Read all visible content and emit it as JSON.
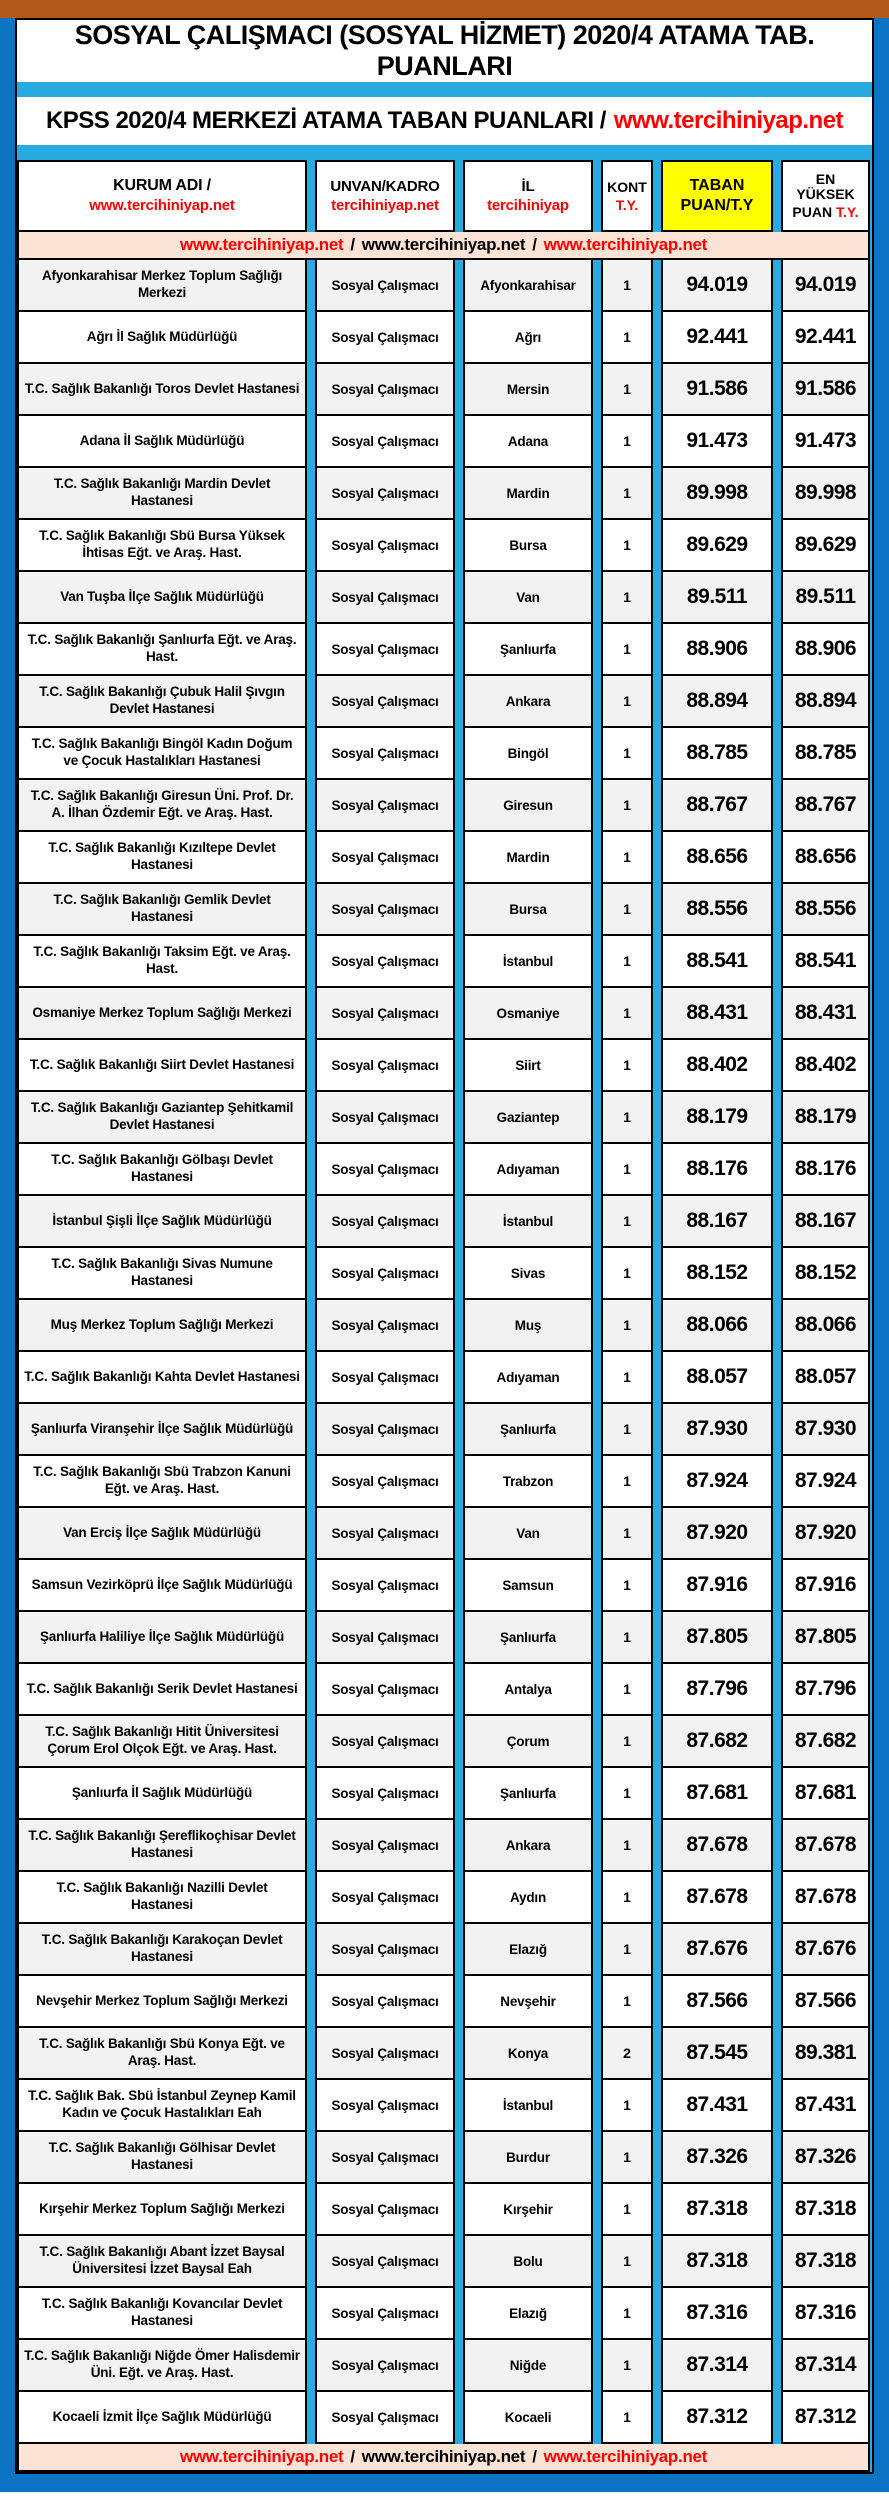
{
  "colors": {
    "outer_frame_blue": "#0D74C4",
    "divider_cyan": "#29ABE2",
    "top_bar_brown": "#B4591C",
    "taban_header_yellow": "#FFFF00",
    "url_bar_pink": "#FBE3D6",
    "link_red": "#FF0000",
    "odd_row_gray": "#F2F2F2"
  },
  "header": {
    "title": "SOSYAL ÇALIŞMACI (SOSYAL HİZMET) 2020/4 ATAMA TAB. PUANLARI",
    "subtitle": "KPSS 2020/4 MERKEZİ ATAMA TABAN PUANLARI /",
    "subtitle_link": "www.tercihiniyap.net"
  },
  "columns": [
    {
      "line1": "KURUM ADI /",
      "line2": "www.tercihiniyap.net"
    },
    {
      "line1": "UNVAN/KADRO",
      "line2": "tercihiniyap.net"
    },
    {
      "line1": "İL",
      "line2": "tercihiniyap"
    },
    {
      "line1": "KONT",
      "line2": "T.Y."
    },
    {
      "line1": "TABAN",
      "line2": "PUAN/T.Y"
    },
    {
      "line1": "EN YÜKSEK",
      "line2": "PUAN",
      "line2_red": "T.Y."
    }
  ],
  "url_bar": {
    "left": "www.tercihiniyap.net",
    "middle": "www.tercihiniyap.net",
    "right": "www.tercihiniyap.net",
    "separator": "/"
  },
  "rows": [
    {
      "kurum": "Afyonkarahisar Merkez Toplum Sağlığı Merkezi",
      "unvan": "Sosyal Çalışmacı",
      "il": "Afyonkarahisar",
      "kont": "1",
      "taban": "94.019",
      "max": "94.019"
    },
    {
      "kurum": "Ağrı İl Sağlık Müdürlüğü",
      "unvan": "Sosyal Çalışmacı",
      "il": "Ağrı",
      "kont": "1",
      "taban": "92.441",
      "max": "92.441"
    },
    {
      "kurum": "T.C. Sağlık Bakanlığı Toros Devlet Hastanesi",
      "unvan": "Sosyal Çalışmacı",
      "il": "Mersin",
      "kont": "1",
      "taban": "91.586",
      "max": "91.586"
    },
    {
      "kurum": "Adana İl Sağlık Müdürlüğü",
      "unvan": "Sosyal Çalışmacı",
      "il": "Adana",
      "kont": "1",
      "taban": "91.473",
      "max": "91.473"
    },
    {
      "kurum": "T.C. Sağlık Bakanlığı Mardin Devlet Hastanesi",
      "unvan": "Sosyal Çalışmacı",
      "il": "Mardin",
      "kont": "1",
      "taban": "89.998",
      "max": "89.998"
    },
    {
      "kurum": "T.C. Sağlık Bakanlığı Sbü Bursa Yüksek İhtisas Eğt. ve Araş. Hast.",
      "unvan": "Sosyal Çalışmacı",
      "il": "Bursa",
      "kont": "1",
      "taban": "89.629",
      "max": "89.629"
    },
    {
      "kurum": "Van Tuşba İlçe Sağlık Müdürlüğü",
      "unvan": "Sosyal Çalışmacı",
      "il": "Van",
      "kont": "1",
      "taban": "89.511",
      "max": "89.511"
    },
    {
      "kurum": "T.C. Sağlık Bakanlığı Şanlıurfa Eğt. ve Araş. Hast.",
      "unvan": "Sosyal Çalışmacı",
      "il": "Şanlıurfa",
      "kont": "1",
      "taban": "88.906",
      "max": "88.906"
    },
    {
      "kurum": "T.C. Sağlık Bakanlığı Çubuk Halil Şıvgın Devlet Hastanesi",
      "unvan": "Sosyal Çalışmacı",
      "il": "Ankara",
      "kont": "1",
      "taban": "88.894",
      "max": "88.894"
    },
    {
      "kurum": "T.C. Sağlık Bakanlığı Bingöl Kadın Doğum ve Çocuk Hastalıkları Hastanesi",
      "unvan": "Sosyal Çalışmacı",
      "il": "Bingöl",
      "kont": "1",
      "taban": "88.785",
      "max": "88.785"
    },
    {
      "kurum": "T.C. Sağlık Bakanlığı Giresun Üni. Prof. Dr. A. İlhan Özdemir Eğt. ve Araş. Hast.",
      "unvan": "Sosyal Çalışmacı",
      "il": "Giresun",
      "kont": "1",
      "taban": "88.767",
      "max": "88.767"
    },
    {
      "kurum": "T.C. Sağlık Bakanlığı Kızıltepe Devlet Hastanesi",
      "unvan": "Sosyal Çalışmacı",
      "il": "Mardin",
      "kont": "1",
      "taban": "88.656",
      "max": "88.656"
    },
    {
      "kurum": "T.C. Sağlık Bakanlığı Gemlik Devlet Hastanesi",
      "unvan": "Sosyal Çalışmacı",
      "il": "Bursa",
      "kont": "1",
      "taban": "88.556",
      "max": "88.556"
    },
    {
      "kurum": "T.C. Sağlık Bakanlığı Taksim Eğt. ve Araş. Hast.",
      "unvan": "Sosyal Çalışmacı",
      "il": "İstanbul",
      "kont": "1",
      "taban": "88.541",
      "max": "88.541"
    },
    {
      "kurum": "Osmaniye Merkez Toplum Sağlığı Merkezi",
      "unvan": "Sosyal Çalışmacı",
      "il": "Osmaniye",
      "kont": "1",
      "taban": "88.431",
      "max": "88.431"
    },
    {
      "kurum": "T.C. Sağlık Bakanlığı Siirt Devlet Hastanesi",
      "unvan": "Sosyal Çalışmacı",
      "il": "Siirt",
      "kont": "1",
      "taban": "88.402",
      "max": "88.402"
    },
    {
      "kurum": "T.C. Sağlık Bakanlığı Gaziantep Şehitkamil Devlet Hastanesi",
      "unvan": "Sosyal Çalışmacı",
      "il": "Gaziantep",
      "kont": "1",
      "taban": "88.179",
      "max": "88.179"
    },
    {
      "kurum": "T.C. Sağlık Bakanlığı Gölbaşı Devlet Hastanesi",
      "unvan": "Sosyal Çalışmacı",
      "il": "Adıyaman",
      "kont": "1",
      "taban": "88.176",
      "max": "88.176"
    },
    {
      "kurum": "İstanbul Şişli İlçe Sağlık Müdürlüğü",
      "unvan": "Sosyal Çalışmacı",
      "il": "İstanbul",
      "kont": "1",
      "taban": "88.167",
      "max": "88.167"
    },
    {
      "kurum": "T.C. Sağlık Bakanlığı Sivas Numune Hastanesi",
      "unvan": "Sosyal Çalışmacı",
      "il": "Sivas",
      "kont": "1",
      "taban": "88.152",
      "max": "88.152"
    },
    {
      "kurum": "Muş Merkez Toplum Sağlığı Merkezi",
      "unvan": "Sosyal Çalışmacı",
      "il": "Muş",
      "kont": "1",
      "taban": "88.066",
      "max": "88.066"
    },
    {
      "kurum": "T.C. Sağlık Bakanlığı Kahta Devlet Hastanesi",
      "unvan": "Sosyal Çalışmacı",
      "il": "Adıyaman",
      "kont": "1",
      "taban": "88.057",
      "max": "88.057"
    },
    {
      "kurum": "Şanlıurfa Viranşehir İlçe Sağlık Müdürlüğü",
      "unvan": "Sosyal Çalışmacı",
      "il": "Şanlıurfa",
      "kont": "1",
      "taban": "87.930",
      "max": "87.930"
    },
    {
      "kurum": "T.C. Sağlık Bakanlığı Sbü Trabzon Kanuni Eğt. ve Araş. Hast.",
      "unvan": "Sosyal Çalışmacı",
      "il": "Trabzon",
      "kont": "1",
      "taban": "87.924",
      "max": "87.924"
    },
    {
      "kurum": "Van Erciş İlçe Sağlık Müdürlüğü",
      "unvan": "Sosyal Çalışmacı",
      "il": "Van",
      "kont": "1",
      "taban": "87.920",
      "max": "87.920"
    },
    {
      "kurum": "Samsun Vezirköprü İlçe Sağlık Müdürlüğü",
      "unvan": "Sosyal Çalışmacı",
      "il": "Samsun",
      "kont": "1",
      "taban": "87.916",
      "max": "87.916"
    },
    {
      "kurum": "Şanlıurfa Haliliye İlçe Sağlık Müdürlüğü",
      "unvan": "Sosyal Çalışmacı",
      "il": "Şanlıurfa",
      "kont": "1",
      "taban": "87.805",
      "max": "87.805"
    },
    {
      "kurum": "T.C. Sağlık Bakanlığı Serik Devlet Hastanesi",
      "unvan": "Sosyal Çalışmacı",
      "il": "Antalya",
      "kont": "1",
      "taban": "87.796",
      "max": "87.796"
    },
    {
      "kurum": "T.C. Sağlık Bakanlığı Hitit Üniversitesi Çorum Erol Olçok Eğt. ve Araş. Hast.",
      "unvan": "Sosyal Çalışmacı",
      "il": "Çorum",
      "kont": "1",
      "taban": "87.682",
      "max": "87.682"
    },
    {
      "kurum": "Şanlıurfa İl Sağlık Müdürlüğü",
      "unvan": "Sosyal Çalışmacı",
      "il": "Şanlıurfa",
      "kont": "1",
      "taban": "87.681",
      "max": "87.681"
    },
    {
      "kurum": "T.C. Sağlık Bakanlığı Şereflikoçhisar Devlet Hastanesi",
      "unvan": "Sosyal Çalışmacı",
      "il": "Ankara",
      "kont": "1",
      "taban": "87.678",
      "max": "87.678"
    },
    {
      "kurum": "T.C. Sağlık Bakanlığı Nazilli Devlet Hastanesi",
      "unvan": "Sosyal Çalışmacı",
      "il": "Aydın",
      "kont": "1",
      "taban": "87.678",
      "max": "87.678"
    },
    {
      "kurum": "T.C. Sağlık Bakanlığı Karakoçan Devlet Hastanesi",
      "unvan": "Sosyal Çalışmacı",
      "il": "Elazığ",
      "kont": "1",
      "taban": "87.676",
      "max": "87.676"
    },
    {
      "kurum": "Nevşehir Merkez Toplum Sağlığı Merkezi",
      "unvan": "Sosyal Çalışmacı",
      "il": "Nevşehir",
      "kont": "1",
      "taban": "87.566",
      "max": "87.566"
    },
    {
      "kurum": "T.C. Sağlık Bakanlığı Sbü Konya Eğt. ve Araş. Hast.",
      "unvan": "Sosyal Çalışmacı",
      "il": "Konya",
      "kont": "2",
      "taban": "87.545",
      "max": "89.381"
    },
    {
      "kurum": "T.C. Sağlık Bak. Sbü İstanbul Zeynep Kamil Kadın ve Çocuk Hastalıkları Eah",
      "unvan": "Sosyal Çalışmacı",
      "il": "İstanbul",
      "kont": "1",
      "taban": "87.431",
      "max": "87.431"
    },
    {
      "kurum": "T.C. Sağlık Bakanlığı Gölhisar Devlet Hastanesi",
      "unvan": "Sosyal Çalışmacı",
      "il": "Burdur",
      "kont": "1",
      "taban": "87.326",
      "max": "87.326"
    },
    {
      "kurum": "Kırşehir Merkez Toplum Sağlığı Merkezi",
      "unvan": "Sosyal Çalışmacı",
      "il": "Kırşehir",
      "kont": "1",
      "taban": "87.318",
      "max": "87.318"
    },
    {
      "kurum": "T.C. Sağlık Bakanlığı Abant İzzet Baysal Üniversitesi İzzet Baysal Eah",
      "unvan": "Sosyal Çalışmacı",
      "il": "Bolu",
      "kont": "1",
      "taban": "87.318",
      "max": "87.318"
    },
    {
      "kurum": "T.C. Sağlık Bakanlığı Kovancılar Devlet Hastanesi",
      "unvan": "Sosyal Çalışmacı",
      "il": "Elazığ",
      "kont": "1",
      "taban": "87.316",
      "max": "87.316"
    },
    {
      "kurum": "T.C. Sağlık Bakanlığı Niğde Ömer Halisdemir Üni. Eğt. ve Araş. Hast.",
      "unvan": "Sosyal Çalışmacı",
      "il": "Niğde",
      "kont": "1",
      "taban": "87.314",
      "max": "87.314"
    },
    {
      "kurum": "Kocaeli İzmit İlçe Sağlık Müdürlüğü",
      "unvan": "Sosyal Çalışmacı",
      "il": "Kocaeli",
      "kont": "1",
      "taban": "87.312",
      "max": "87.312"
    }
  ]
}
